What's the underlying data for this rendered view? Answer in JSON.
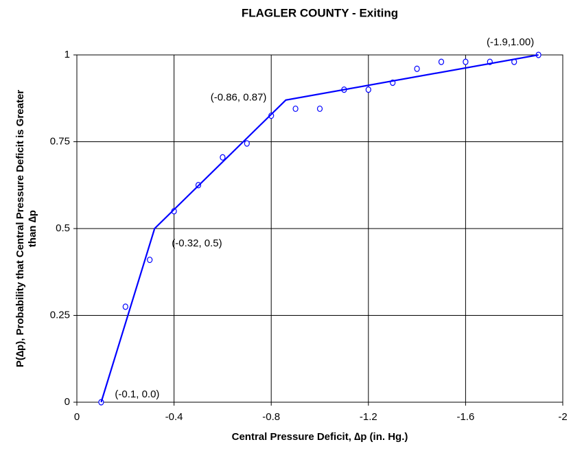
{
  "chart_data": {
    "type": "scatter",
    "title": "FLAGLER COUNTY - Exiting",
    "xlabel": "Central Pressure Deficit, ∆p (in. Hg.)",
    "ylabel": [
      "P(∆p), Probability that Central Pressure Deficit is Greater",
      "than ∆p"
    ],
    "xlim": [
      0,
      -2
    ],
    "xticks": [
      0,
      -0.4,
      -0.8,
      -1.2,
      -1.6,
      -2
    ],
    "ylim": [
      0,
      1
    ],
    "yticks": [
      0,
      0.25,
      0.5,
      0.75,
      1
    ],
    "grid": true,
    "series": [
      {
        "kind": "points",
        "color": "#0000ff",
        "x": [
          -0.1,
          -0.2,
          -0.3,
          -0.4,
          -0.5,
          -0.6,
          -0.7,
          -0.8,
          -0.9,
          -1.0,
          -1.1,
          -1.2,
          -1.3,
          -1.4,
          -1.5,
          -1.6,
          -1.7,
          -1.8,
          -1.9
        ],
        "values": [
          0,
          0.275,
          0.41,
          0.55,
          0.625,
          0.705,
          0.745,
          0.825,
          0.845,
          0.845,
          0.9,
          0.9,
          0.92,
          0.96,
          0.98,
          0.98,
          0.98,
          0.98,
          1.0
        ]
      },
      {
        "kind": "line",
        "color": "#0000ff",
        "x": [
          -0.1,
          -0.32,
          -0.86,
          -1.9
        ],
        "values": [
          0,
          0.5,
          0.87,
          1.0
        ]
      }
    ],
    "annotations": [
      "(-0.1, 0.0)",
      "(-0.32, 0.5)",
      "(-0.86, 0.87)",
      "(-1.9,1.00)"
    ]
  }
}
